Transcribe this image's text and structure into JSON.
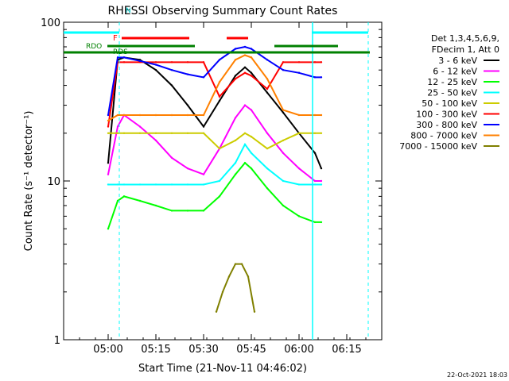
{
  "footer_timestamp": "22-Oct-2021 18:03",
  "chart_data": {
    "type": "line",
    "title": "RHESSI Observing Summary Count Rates",
    "xlabel": "Start Time (21-Nov-11 04:46:02)",
    "ylabel": "Count Rate (s⁻¹ detector⁻¹)",
    "y_scale": "log",
    "ylim": [
      1,
      100
    ],
    "xlim": [
      "04:46",
      "06:26"
    ],
    "x_ticks": [
      "05:00",
      "05:15",
      "05:30",
      "05:45",
      "06:00",
      "06:15"
    ],
    "y_ticks": [
      "1",
      "10",
      "100"
    ],
    "legend": {
      "placement": "right",
      "header": [
        "Det 1,3,4,5,6,9,",
        "FDecim 1, Att 0"
      ]
    },
    "series": [
      {
        "name": "3 - 6 keV",
        "color": "#000000",
        "x": [
          "05:00",
          "05:03",
          "05:05",
          "05:10",
          "05:15",
          "05:20",
          "05:25",
          "05:30",
          "05:35",
          "05:40",
          "05:43",
          "05:45",
          "05:50",
          "05:55",
          "06:00",
          "06:05",
          "06:07"
        ],
        "y": [
          13,
          58,
          60,
          58,
          50,
          40,
          30,
          22,
          32,
          46,
          52,
          48,
          36,
          27,
          20,
          15,
          12
        ]
      },
      {
        "name": "6 - 12 keV",
        "color": "#ff00ff",
        "x": [
          "05:00",
          "05:03",
          "05:05",
          "05:10",
          "05:15",
          "05:20",
          "05:25",
          "05:30",
          "05:35",
          "05:40",
          "05:43",
          "05:45",
          "05:50",
          "05:55",
          "06:00",
          "06:05",
          "06:07"
        ],
        "y": [
          11,
          22,
          26,
          22,
          18,
          14,
          12,
          11,
          16,
          25,
          30,
          28,
          20,
          15,
          12,
          10,
          10
        ]
      },
      {
        "name": "12 - 25 keV",
        "color": "#00ff00",
        "x": [
          "05:00",
          "05:03",
          "05:05",
          "05:10",
          "05:15",
          "05:20",
          "05:25",
          "05:30",
          "05:35",
          "05:40",
          "05:43",
          "05:45",
          "05:50",
          "05:55",
          "06:00",
          "06:05",
          "06:07"
        ],
        "y": [
          5,
          7.5,
          8,
          7.5,
          7,
          6.5,
          6.5,
          6.5,
          8,
          11,
          13,
          12,
          9,
          7,
          6,
          5.5,
          5.5
        ]
      },
      {
        "name": "25 - 50 keV",
        "color": "#00ffff",
        "x": [
          "05:00",
          "05:03",
          "05:05",
          "05:10",
          "05:15",
          "05:20",
          "05:25",
          "05:30",
          "05:35",
          "05:40",
          "05:43",
          "05:45",
          "05:50",
          "05:55",
          "06:00",
          "06:05",
          "06:07"
        ],
        "y": [
          9.5,
          9.5,
          9.5,
          9.5,
          9.5,
          9.5,
          9.5,
          9.5,
          10,
          13,
          17,
          15,
          12,
          10,
          9.5,
          9.5,
          9.5
        ]
      },
      {
        "name": "50 - 100 keV",
        "color": "#cccc00",
        "x": [
          "05:00",
          "05:03",
          "05:05",
          "05:10",
          "05:15",
          "05:20",
          "05:25",
          "05:30",
          "05:35",
          "05:40",
          "05:43",
          "05:45",
          "05:50",
          "05:55",
          "06:00",
          "06:05",
          "06:07"
        ],
        "y": [
          20,
          20,
          20,
          20,
          20,
          20,
          20,
          20,
          16,
          18,
          20,
          19,
          16,
          18,
          20,
          20,
          20
        ]
      },
      {
        "name": "100 - 300 keV",
        "color": "#ff0000",
        "x": [
          "05:00",
          "05:03",
          "05:05",
          "05:10",
          "05:15",
          "05:20",
          "05:25",
          "05:30",
          "05:35",
          "05:40",
          "05:43",
          "05:45",
          "05:50",
          "05:55",
          "06:00",
          "06:05",
          "06:07"
        ],
        "y": [
          22,
          56,
          56,
          56,
          56,
          56,
          56,
          56,
          34,
          44,
          48,
          46,
          38,
          56,
          56,
          56,
          56
        ]
      },
      {
        "name": "300 - 800 keV",
        "color": "#0000ff",
        "x": [
          "05:00",
          "05:03",
          "05:05",
          "05:10",
          "05:15",
          "05:20",
          "05:25",
          "05:30",
          "05:35",
          "05:40",
          "05:43",
          "05:45",
          "05:50",
          "05:55",
          "06:00",
          "06:05",
          "06:07"
        ],
        "y": [
          26,
          60,
          60,
          57,
          54,
          50,
          47,
          45,
          58,
          68,
          70,
          68,
          58,
          50,
          48,
          45,
          45
        ]
      },
      {
        "name": "800 - 7000 keV",
        "color": "#ff8000",
        "x": [
          "05:00",
          "05:03",
          "05:05",
          "05:10",
          "05:15",
          "05:20",
          "05:25",
          "05:30",
          "05:35",
          "05:40",
          "05:43",
          "05:45",
          "05:50",
          "05:55",
          "06:00",
          "06:05",
          "06:07"
        ],
        "y": [
          24,
          26,
          26,
          26,
          26,
          26,
          26,
          26,
          42,
          58,
          62,
          60,
          44,
          28,
          26,
          26,
          26
        ]
      },
      {
        "name": "7000 - 15000 keV",
        "color": "#808000",
        "x": [
          "05:34",
          "05:36",
          "05:38",
          "05:40",
          "05:42",
          "05:44",
          "05:46"
        ],
        "y": [
          1.5,
          2,
          2.5,
          3,
          3,
          2.5,
          1.5
        ]
      }
    ],
    "annotations": [
      "N",
      "F",
      "RDO",
      "RDS"
    ]
  }
}
